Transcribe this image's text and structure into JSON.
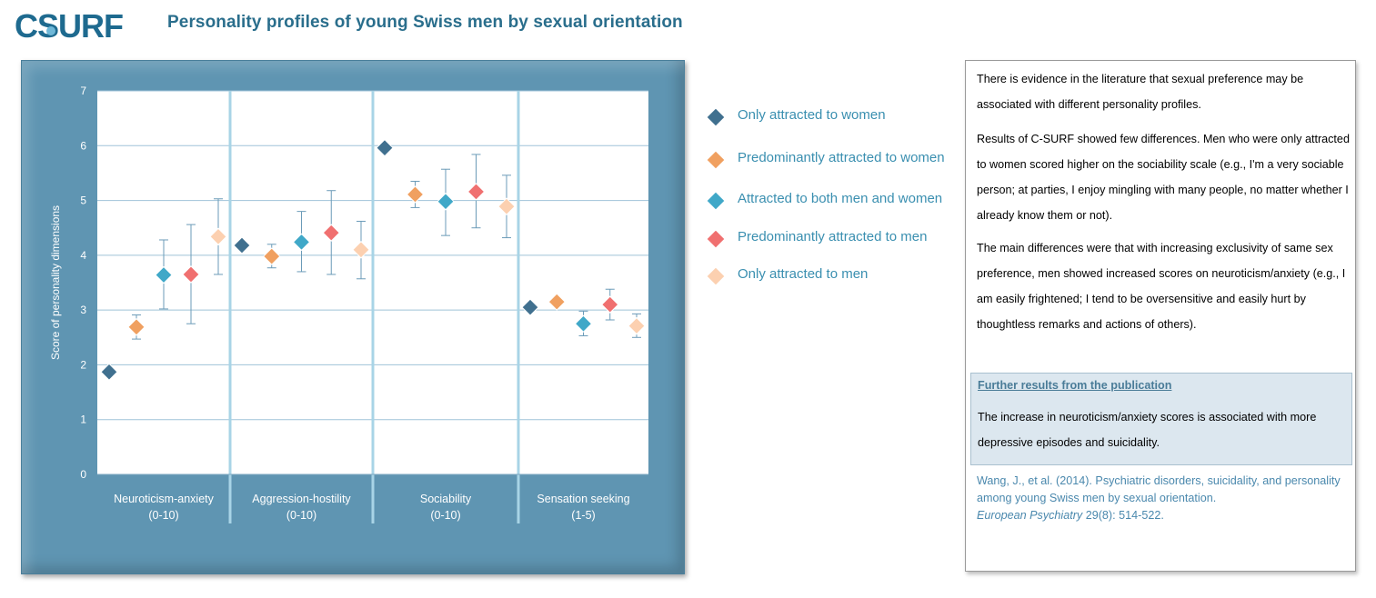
{
  "header": {
    "logo_text": "CSURF",
    "title": "Personality profiles of young Swiss men by sexual orientation"
  },
  "colors": {
    "panel": "#5f95b2",
    "title": "#2a6e8c",
    "series": [
      "#40708f",
      "#f0a060",
      "#40a8c8",
      "#f07070",
      "#fcd0b0"
    ]
  },
  "legend": {
    "items": [
      "Only attracted to women",
      "Predominantly attracted to women",
      "Attracted to both men and women",
      "Predominantly attracted to men",
      "Only attracted to men"
    ]
  },
  "chart_data": {
    "type": "scatter",
    "ylabel": "Score of personality dimensions",
    "ylim": [
      0,
      7
    ],
    "yticks": [
      "0",
      "1",
      "2",
      "3",
      "4",
      "5",
      "6",
      "7"
    ],
    "grid": true,
    "legend_position": "right",
    "categories": [
      {
        "line1": "Neuroticism-anxiety",
        "line2": "(0-10)"
      },
      {
        "line1": "Aggression-hostility",
        "line2": "(0-10)"
      },
      {
        "line1": "Sociability",
        "line2": "(0-10)"
      },
      {
        "line1": "Sensation seeking",
        "line2": "(1-5)"
      }
    ],
    "series": [
      {
        "name": "Only attracted to women",
        "values": [
          1.87,
          4.18,
          5.96,
          3.05
        ],
        "ci": [
          null,
          null,
          null,
          null
        ]
      },
      {
        "name": "Predominantly attracted to women",
        "values": [
          2.69,
          3.98,
          5.11,
          3.15
        ],
        "ci": [
          [
            2.47,
            2.91
          ],
          [
            3.77,
            4.2
          ],
          [
            4.87,
            5.35
          ],
          null
        ]
      },
      {
        "name": "Attracted to both men and women",
        "values": [
          3.64,
          4.24,
          4.98,
          2.75
        ],
        "ci": [
          [
            3.02,
            4.28
          ],
          [
            3.7,
            4.8
          ],
          [
            4.36,
            5.57
          ],
          [
            2.53,
            2.98
          ]
        ]
      },
      {
        "name": "Predominantly attracted to men",
        "values": [
          3.65,
          4.41,
          5.16,
          3.1
        ],
        "ci": [
          [
            2.75,
            4.56
          ],
          [
            3.65,
            5.18
          ],
          [
            4.5,
            5.84
          ],
          [
            2.82,
            3.38
          ]
        ]
      },
      {
        "name": "Only attracted to men",
        "values": [
          4.34,
          4.1,
          4.89,
          2.71
        ],
        "ci": [
          [
            3.65,
            5.03
          ],
          [
            3.57,
            4.62
          ],
          [
            4.32,
            5.46
          ],
          [
            2.5,
            2.93
          ]
        ]
      }
    ]
  },
  "info": {
    "p1": "There is evidence in the literature that sexual preference may be associated with different personality profiles.",
    "p2": "Results of C-SURF showed few differences. Men who were only attracted to women scored higher on the sociability scale (e.g., I'm a very sociable person;  at parties, I enjoy mingling with many people, no  matter whether I already know them or not).",
    "p3": "The main differences were that with increasing exclusivity of same sex preference, men showed increased scores on neuroticism/anxiety (e.g., I am easily frightened; I tend to be oversensitive and easily hurt by thoughtless remarks and actions of others).",
    "further_heading": "Further results from the publication",
    "further_text": "The increase in neuroticism/anxiety scores is associated with more depressive episodes and suicidality.",
    "citation_main": "Wang, J., et al. (2014).  Psychiatric disorders, suicidality,  and personality among young Swiss men by sexual orientation.",
    "citation_journal": "European Psychiatry",
    "citation_rest": " 29(8): 514-522."
  }
}
